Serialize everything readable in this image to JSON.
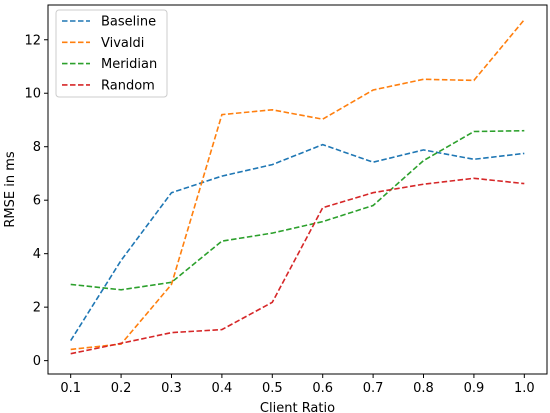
{
  "chart_data": {
    "type": "line",
    "xlabel": "Client Ratio",
    "ylabel": "RMSE in ms",
    "x": [
      0.1,
      0.2,
      0.3,
      0.4,
      0.5,
      0.6,
      0.7,
      0.8,
      0.9,
      1.0
    ],
    "x_tick_labels": [
      "0.1",
      "0.2",
      "0.3",
      "0.4",
      "0.5",
      "0.6",
      "0.7",
      "0.8",
      "0.9",
      "1.0"
    ],
    "y_ticks": [
      0,
      2,
      4,
      6,
      8,
      10,
      12
    ],
    "xlim": [
      0.055,
      1.045
    ],
    "ylim": [
      -0.5,
      13.3
    ],
    "grid": false,
    "legend_position": "top-left",
    "line_style": "dashed",
    "series": [
      {
        "name": "Baseline",
        "color": "#1f77b4",
        "values": [
          0.75,
          3.75,
          6.28,
          6.9,
          7.33,
          8.08,
          7.42,
          7.88,
          7.53,
          7.75
        ]
      },
      {
        "name": "Vivaldi",
        "color": "#ff7f0e",
        "values": [
          0.42,
          0.62,
          2.85,
          9.2,
          9.38,
          9.03,
          10.12,
          10.52,
          10.48,
          12.75
        ]
      },
      {
        "name": "Meridian",
        "color": "#2ca02c",
        "values": [
          2.85,
          2.65,
          2.93,
          4.47,
          4.77,
          5.2,
          5.8,
          7.48,
          8.57,
          8.6
        ]
      },
      {
        "name": "Random",
        "color": "#d62728",
        "values": [
          0.26,
          0.65,
          1.05,
          1.16,
          2.18,
          5.72,
          6.28,
          6.6,
          6.82,
          6.62
        ]
      }
    ]
  }
}
